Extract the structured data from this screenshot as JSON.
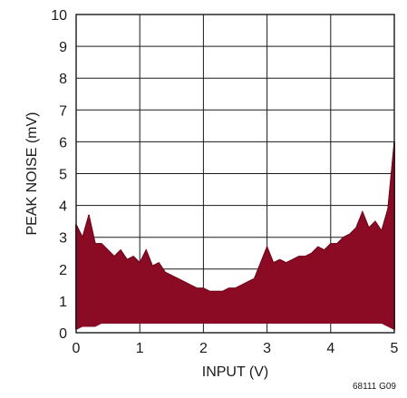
{
  "chart_data": {
    "type": "area",
    "xlabel": "INPUT (V)",
    "ylabel": "PEAK NOISE (mV)",
    "xlim": [
      0,
      5
    ],
    "ylim": [
      0,
      10
    ],
    "x_ticks": [
      "0",
      "1",
      "2",
      "3",
      "4",
      "5"
    ],
    "y_ticks": [
      "0",
      "1",
      "2",
      "3",
      "4",
      "5",
      "6",
      "7",
      "8",
      "9",
      "10"
    ],
    "grid": true,
    "series": [
      {
        "color": "#8b0b25",
        "x": [
          0,
          0.1,
          0.2,
          0.3,
          0.4,
          0.5,
          0.6,
          0.7,
          0.8,
          0.9,
          1.0,
          1.1,
          1.2,
          1.3,
          1.4,
          1.5,
          1.6,
          1.7,
          1.8,
          1.9,
          2.0,
          2.1,
          2.2,
          2.3,
          2.4,
          2.5,
          2.6,
          2.7,
          2.8,
          2.9,
          3.0,
          3.1,
          3.2,
          3.3,
          3.4,
          3.5,
          3.6,
          3.7,
          3.8,
          3.9,
          4.0,
          4.1,
          4.2,
          4.3,
          4.4,
          4.5,
          4.6,
          4.7,
          4.8,
          4.9,
          5.0
        ],
        "upper": [
          3.4,
          3.0,
          3.7,
          2.8,
          2.8,
          2.6,
          2.4,
          2.6,
          2.3,
          2.4,
          2.2,
          2.6,
          2.1,
          2.2,
          1.9,
          1.8,
          1.7,
          1.6,
          1.5,
          1.4,
          1.4,
          1.3,
          1.3,
          1.3,
          1.4,
          1.4,
          1.5,
          1.6,
          1.7,
          2.2,
          2.7,
          2.2,
          2.3,
          2.2,
          2.3,
          2.4,
          2.4,
          2.5,
          2.7,
          2.6,
          2.8,
          2.8,
          3.0,
          3.1,
          3.3,
          3.8,
          3.3,
          3.5,
          3.2,
          3.9,
          6.0
        ],
        "lower": [
          0.1,
          0.2,
          0.2,
          0.2,
          0.3,
          0.3,
          0.3,
          0.3,
          0.3,
          0.3,
          0.3,
          0.3,
          0.3,
          0.3,
          0.3,
          0.3,
          0.3,
          0.3,
          0.3,
          0.3,
          0.3,
          0.3,
          0.3,
          0.3,
          0.3,
          0.3,
          0.3,
          0.3,
          0.3,
          0.3,
          0.3,
          0.3,
          0.3,
          0.3,
          0.3,
          0.3,
          0.3,
          0.3,
          0.3,
          0.3,
          0.3,
          0.3,
          0.3,
          0.3,
          0.3,
          0.3,
          0.3,
          0.3,
          0.3,
          0.2,
          0.1
        ]
      }
    ]
  },
  "figure_code": "68111 G09"
}
